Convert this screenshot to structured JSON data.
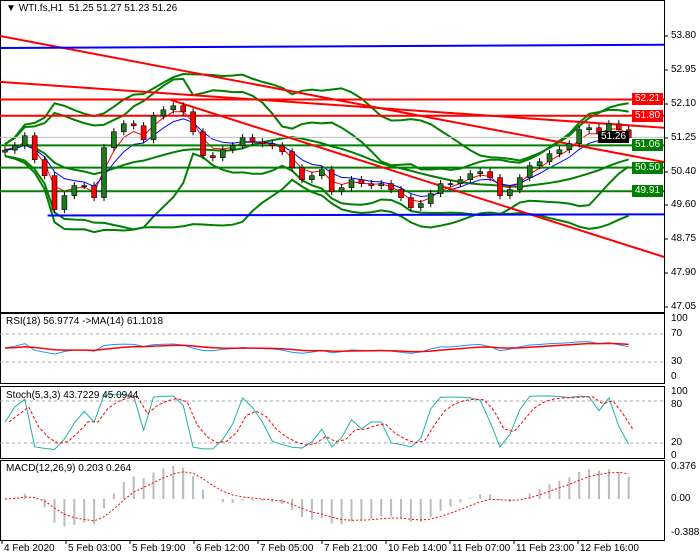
{
  "header": {
    "symbol": "WTI.fs,H1",
    "ohlc": "51.25 51.27 51.23 51.26"
  },
  "colors": {
    "bull": "#1f7a1f",
    "bear": "#ff0000",
    "band": "#008000",
    "level_red": "#ff0000",
    "level_green": "#008000",
    "trend_blue": "#0000ff",
    "ma_fast": "#ff0000",
    "ma_slow": "#0000ff",
    "rsi": "#1e90ff",
    "stoch": "#20b2aa"
  },
  "chart_data": [
    {
      "type": "candlestick",
      "title": "WTI.fs,H1",
      "ylim": [
        47.05,
        54.1
      ],
      "y_ticks": [
        "53.80",
        "52.95",
        "52.10",
        "51.25",
        "50.40",
        "49.60",
        "48.75",
        "47.90",
        "47.05"
      ],
      "x_ticks": [
        "4 Feb 2020",
        "5 Feb 03:00",
        "5 Feb 19:00",
        "6 Feb 12:00",
        "7 Feb 05:00",
        "7 Feb 21:00",
        "10 Feb 14:00",
        "11 Feb 07:00",
        "11 Feb 23:00",
        "12 Feb 16:00"
      ],
      "closes": [
        50.94,
        51.05,
        51.3,
        50.7,
        50.3,
        49.45,
        49.8,
        50.05,
        50.05,
        49.75,
        51.0,
        51.4,
        51.6,
        51.55,
        51.2,
        51.8,
        51.95,
        52.05,
        51.9,
        51.4,
        50.8,
        50.75,
        50.95,
        51.05,
        51.25,
        51.15,
        51.1,
        51.05,
        50.9,
        50.5,
        50.2,
        50.3,
        50.45,
        49.9,
        50.0,
        50.2,
        50.1,
        50.05,
        50.1,
        49.95,
        49.75,
        49.5,
        49.6,
        49.85,
        50.1,
        50.1,
        50.2,
        50.35,
        50.4,
        50.25,
        49.8,
        49.95,
        50.25,
        50.55,
        50.65,
        50.85,
        50.95,
        51.1,
        51.45,
        51.5,
        51.35,
        51.6,
        51.45,
        51.26
      ],
      "levels": [
        {
          "price": 52.21,
          "label": "52.21",
          "color": "red"
        },
        {
          "price": 51.8,
          "label": "51.80",
          "color": "red"
        },
        {
          "price": 51.06,
          "label": "51.06",
          "color": "green"
        },
        {
          "price": 50.5,
          "label": "50.50",
          "color": "green"
        },
        {
          "price": 49.91,
          "label": "49.91",
          "color": "green"
        }
      ],
      "current_price": {
        "price": 51.26,
        "label": "51.26"
      },
      "trendlines": [
        {
          "from": [
            -0.5,
            53.8
          ],
          "to": [
            66.6,
            50.64
          ],
          "color": "red"
        },
        {
          "from": [
            -0.5,
            52.65
          ],
          "to": [
            66.6,
            51.5
          ],
          "color": "red"
        },
        {
          "from": [
            16.7,
            52.2
          ],
          "to": [
            66.6,
            48.26
          ],
          "color": "red"
        },
        {
          "from": [
            -0.5,
            53.5
          ],
          "to": [
            66.6,
            53.58
          ],
          "color": "blue"
        },
        {
          "from": [
            4.3,
            49.3
          ],
          "to": [
            66.6,
            49.33
          ],
          "color": "blue"
        }
      ]
    },
    {
      "type": "line",
      "title": "RSI(18) 56.9774  ->MA(14) 61.1018",
      "ylim": [
        0,
        100
      ],
      "y_ticks": [
        "100",
        "70",
        "30",
        "0"
      ],
      "levels": [
        70,
        30
      ]
    },
    {
      "type": "line",
      "title": "Stoch(5,3,3) 43.7229 45.0944",
      "ylim": [
        0,
        100
      ],
      "y_ticks": [
        "100",
        "80",
        "20",
        "0"
      ],
      "levels": [
        80,
        20
      ]
    },
    {
      "type": "bar",
      "title": "MACD(12,26,9) 0.203 0.264",
      "ylim": [
        -0.388,
        0.376
      ],
      "y_ticks": [
        "0.376",
        "0.00",
        "-0.388"
      ]
    }
  ]
}
